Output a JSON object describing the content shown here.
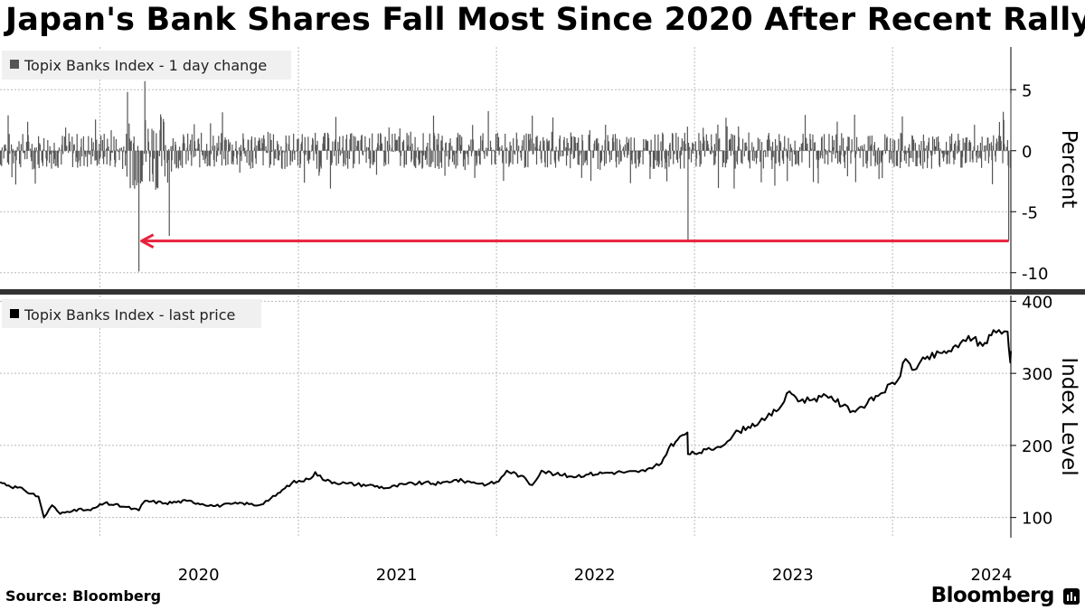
{
  "title": "Japan's Bank Shares Fall Most Since 2020 After Recent Rally",
  "source": "Source: Bloomberg",
  "brand": "Bloomberg",
  "brand_icon": "bar-chart-icon",
  "colors": {
    "bars": "#555555",
    "line": "#000000",
    "arrow": "#e8213b",
    "grid": "#bbbbbb",
    "divider": "#333333"
  },
  "chart_data": [
    {
      "type": "bar",
      "legend": "Topix Banks Index - 1 day change",
      "ylabel": "Percent",
      "ylim": [
        -11.5,
        8.5
      ],
      "yticks": [
        5,
        0,
        -5,
        -10
      ],
      "x_range": [
        "2019-07-01",
        "2024-08-06"
      ],
      "highlight_values": [
        {
          "date": "2020-03-13",
          "value": -9.9
        },
        {
          "date": "2020-03-24",
          "value": 5.7
        },
        {
          "date": "2022-12-20",
          "value": -7.4
        },
        {
          "date": "2024-08-02",
          "value": -7.4
        },
        {
          "date": "2024-08-06",
          "value": 4.7
        }
      ],
      "annotation": "arrow from 2024-08-02 back to 2020-03-13 at -7.4"
    },
    {
      "type": "line",
      "legend": "Topix Banks Index - last price",
      "ylabel": "Index Level",
      "ylim": [
        72,
        408
      ],
      "yticks": [
        400,
        300,
        200,
        100
      ],
      "xticks": [
        "2020",
        "2021",
        "2022",
        "2023",
        "2024"
      ],
      "points": [
        [
          "2019-07-01",
          149
        ],
        [
          "2019-08-15",
          138
        ],
        [
          "2019-09-10",
          129
        ],
        [
          "2019-09-20",
          100
        ],
        [
          "2019-10-05",
          117
        ],
        [
          "2019-10-20",
          105
        ],
        [
          "2019-11-15",
          111
        ],
        [
          "2019-12-15",
          110
        ],
        [
          "2020-01-10",
          120
        ],
        [
          "2020-02-15",
          115
        ],
        [
          "2020-03-13",
          110
        ],
        [
          "2020-03-24",
          123
        ],
        [
          "2020-05-01",
          120
        ],
        [
          "2020-06-10",
          123
        ],
        [
          "2020-08-01",
          116
        ],
        [
          "2020-09-20",
          120
        ],
        [
          "2020-10-20",
          117
        ],
        [
          "2020-11-20",
          130
        ],
        [
          "2020-12-20",
          148
        ],
        [
          "2021-01-20",
          153
        ],
        [
          "2021-02-01",
          163
        ],
        [
          "2021-02-20",
          151
        ],
        [
          "2021-04-01",
          147
        ],
        [
          "2021-05-10",
          145
        ],
        [
          "2021-06-15",
          141
        ],
        [
          "2021-07-15",
          146
        ],
        [
          "2021-08-20",
          148
        ],
        [
          "2021-09-20",
          147
        ],
        [
          "2021-10-15",
          152
        ],
        [
          "2021-11-20",
          149
        ],
        [
          "2021-12-15",
          146
        ],
        [
          "2022-01-05",
          150
        ],
        [
          "2022-01-20",
          165
        ],
        [
          "2022-02-15",
          158
        ],
        [
          "2022-03-08",
          145
        ],
        [
          "2022-03-25",
          165
        ],
        [
          "2022-04-20",
          160
        ],
        [
          "2022-05-20",
          157
        ],
        [
          "2022-06-20",
          160
        ],
        [
          "2022-07-20",
          162
        ],
        [
          "2022-08-20",
          163
        ],
        [
          "2022-09-20",
          163
        ],
        [
          "2022-10-15",
          168
        ],
        [
          "2022-11-01",
          175
        ],
        [
          "2022-11-15",
          197
        ],
        [
          "2022-12-01",
          208
        ],
        [
          "2022-12-19",
          218
        ],
        [
          "2022-12-20",
          188
        ],
        [
          "2023-01-10",
          190
        ],
        [
          "2023-02-10",
          197
        ],
        [
          "2023-03-08",
          208
        ],
        [
          "2023-03-15",
          216
        ],
        [
          "2023-04-10",
          226
        ],
        [
          "2023-05-10",
          235
        ],
        [
          "2023-06-10",
          255
        ],
        [
          "2023-06-25",
          275
        ],
        [
          "2023-07-15",
          262
        ],
        [
          "2023-08-10",
          265
        ],
        [
          "2023-09-10",
          268
        ],
        [
          "2023-10-01",
          255
        ],
        [
          "2023-10-20",
          248
        ],
        [
          "2023-11-15",
          258
        ],
        [
          "2023-12-10",
          272
        ],
        [
          "2024-01-10",
          290
        ],
        [
          "2024-01-25",
          320
        ],
        [
          "2024-02-10",
          305
        ],
        [
          "2024-03-01",
          320
        ],
        [
          "2024-04-01",
          328
        ],
        [
          "2024-05-01",
          336
        ],
        [
          "2024-05-20",
          352
        ],
        [
          "2024-06-15",
          338
        ],
        [
          "2024-07-05",
          360
        ],
        [
          "2024-07-20",
          355
        ],
        [
          "2024-07-31",
          358
        ],
        [
          "2024-08-02",
          337
        ],
        [
          "2024-08-05",
          315
        ],
        [
          "2024-08-06",
          331
        ]
      ]
    }
  ]
}
